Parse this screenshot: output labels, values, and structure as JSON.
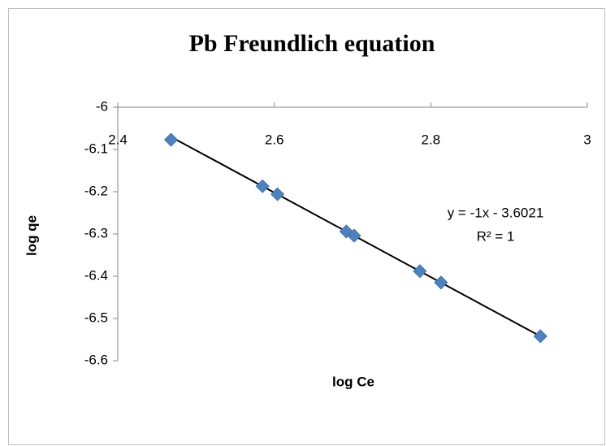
{
  "chart_data": {
    "type": "scatter",
    "title": "Pb Freundlich equation",
    "x_label": "log Ce",
    "y_label": "log qe",
    "series": [
      {
        "name": "log qe",
        "color": "#4f81bd",
        "x": [
          2.468,
          2.585,
          2.604,
          2.692,
          2.702,
          2.786,
          2.813,
          2.94
        ],
        "values": [
          -6.077,
          -6.187,
          -6.206,
          -6.294,
          -6.304,
          -6.388,
          -6.415,
          -6.542
        ]
      }
    ],
    "trendline": {
      "label": "y = -1x - 3.6021",
      "r2_label": "R² = 1",
      "slope": -1,
      "intercept": -3.6021,
      "color": "#000000"
    },
    "xlim": [
      2.4,
      3
    ],
    "xticks": [
      2.4,
      2.6,
      2.8,
      3
    ],
    "ylim": [
      -6.6,
      -6
    ],
    "yticks": [
      -6,
      -6.1,
      -6.2,
      -6.3,
      -6.4,
      -6.5,
      -6.6
    ],
    "grid": false
  }
}
